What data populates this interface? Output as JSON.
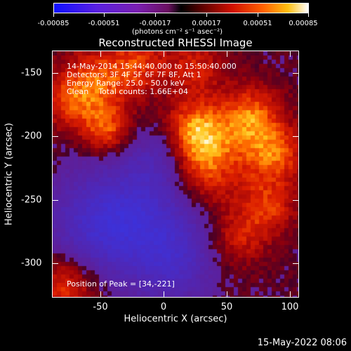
{
  "colorbar": {
    "ticks": [
      "-0.00085",
      "-0.00051",
      "-0.00017",
      "0.00017",
      "0.00051",
      "0.00085"
    ],
    "unit_label": "(photons cm⁻² s⁻¹ asec⁻²)"
  },
  "plot": {
    "title": "Reconstructed RHESSI Image",
    "xlabel": "Heliocentric X (arcsec)",
    "ylabel": "Heliocentric Y (arcsec)",
    "xticks": [
      "-50",
      "0",
      "50",
      "100"
    ],
    "yticks": [
      "-150",
      "-200",
      "-250",
      "-300"
    ]
  },
  "overlay": {
    "line1": "14-May-2014 15:44:40.000 to 15:50:40.000",
    "line2": "Detectors: 3F 4F 5F 6F 7F 8F, Att 1",
    "line3": "Energy Range: 25.0 - 50.0 keV",
    "line4": "Clean    Total counts: 1.66E+04",
    "peak": "Position of Peak = [34,-221]"
  },
  "footer": {
    "timestamp": "15-May-2022 08:06"
  },
  "image_data": {
    "x_range": [
      -87,
      106
    ],
    "y_range": [
      -326,
      -133
    ],
    "peak_position": [
      34,
      -221
    ]
  }
}
